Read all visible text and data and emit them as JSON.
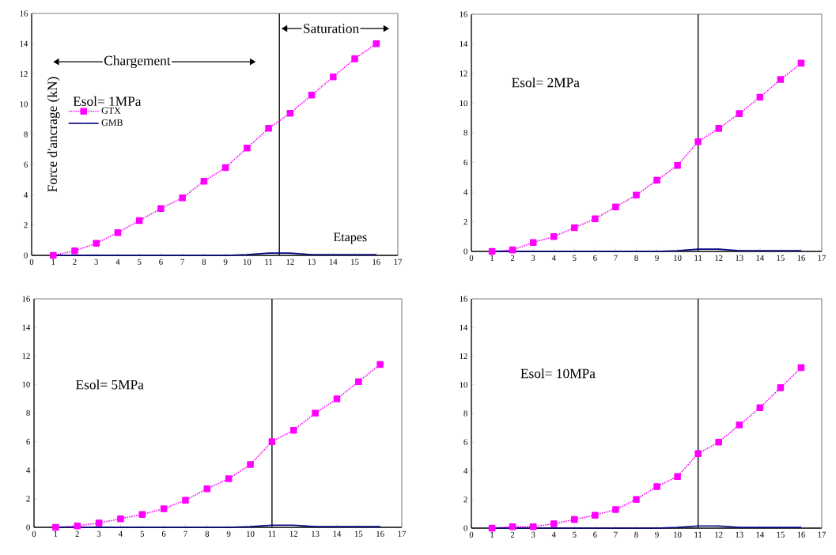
{
  "chart_data": [
    {
      "type": "line",
      "xlabel": "Etapes",
      "ylabel": "Force d'ancrage (kN)",
      "annotations": [
        "Esol= 1MPa",
        "Chargement",
        "Saturation"
      ],
      "x": [
        1,
        2,
        3,
        4,
        5,
        6,
        7,
        8,
        9,
        10,
        11,
        12,
        13,
        14,
        15,
        16
      ],
      "series": [
        {
          "name": "GTX",
          "color": "#ff00ff",
          "marker": "square",
          "line_style": "dotted",
          "values": [
            0,
            0.3,
            0.8,
            1.5,
            2.3,
            3.1,
            3.8,
            4.9,
            5.8,
            7.1,
            8.4,
            9.4,
            10.6,
            11.8,
            13,
            14
          ]
        },
        {
          "name": "GMB",
          "color": "#000080",
          "marker": "none",
          "line_style": "solid",
          "values": [
            0,
            0,
            0,
            0,
            0,
            0,
            0,
            0,
            0,
            0.05,
            0.15,
            0.15,
            0.05,
            0.05,
            0.05,
            0.05
          ]
        }
      ],
      "xlim": [
        0,
        17
      ],
      "xticks": [
        0,
        1,
        2,
        3,
        4,
        5,
        6,
        7,
        8,
        9,
        10,
        11,
        12,
        13,
        14,
        15,
        16,
        17
      ],
      "ylim": [
        0,
        16
      ],
      "yticks": [
        0,
        2,
        4,
        6,
        8,
        10,
        12,
        14,
        16
      ],
      "ref_lines": [
        {
          "axis": "x",
          "value": 11.5,
          "color": "#000000"
        }
      ],
      "legend": "left"
    },
    {
      "type": "line",
      "annotations": [
        "Esol= 2MPa"
      ],
      "x": [
        1,
        2,
        3,
        4,
        5,
        6,
        7,
        8,
        9,
        10,
        11,
        12,
        13,
        14,
        15,
        16
      ],
      "series": [
        {
          "color": "#ff00ff",
          "marker": "square",
          "line_style": "dotted",
          "values": [
            0,
            0.1,
            0.6,
            1.0,
            1.6,
            2.2,
            3.0,
            3.8,
            4.8,
            5.8,
            7.4,
            8.3,
            9.3,
            10.4,
            11.6,
            12.7
          ]
        },
        {
          "color": "#000080",
          "marker": "none",
          "line_style": "solid",
          "values": [
            0,
            0,
            0,
            0,
            0,
            0,
            0,
            0,
            0,
            0.05,
            0.15,
            0.15,
            0.05,
            0.05,
            0.05,
            0.05
          ]
        }
      ],
      "xlim": [
        0,
        17
      ],
      "xticks": [
        0,
        1,
        2,
        3,
        4,
        5,
        6,
        7,
        8,
        9,
        10,
        11,
        12,
        13,
        14,
        15,
        16,
        17
      ],
      "ylim": [
        0,
        16
      ],
      "yticks": [
        0,
        2,
        4,
        6,
        8,
        10,
        12,
        14,
        16
      ],
      "ref_lines": [
        {
          "axis": "x",
          "value": 11,
          "color": "#000000"
        }
      ]
    },
    {
      "type": "line",
      "annotations": [
        "Esol= 5MPa"
      ],
      "x": [
        1,
        2,
        3,
        4,
        5,
        6,
        7,
        8,
        9,
        10,
        11,
        12,
        13,
        14,
        15,
        16
      ],
      "series": [
        {
          "color": "#ff00ff",
          "marker": "square",
          "line_style": "dotted",
          "values": [
            0,
            0.1,
            0.3,
            0.6,
            0.9,
            1.3,
            1.9,
            2.7,
            3.4,
            4.4,
            6.0,
            6.8,
            8.0,
            9.0,
            10.2,
            11.4
          ]
        },
        {
          "color": "#000080",
          "marker": "none",
          "line_style": "solid",
          "values": [
            0,
            0,
            0,
            0,
            0,
            0,
            0,
            0,
            0,
            0.05,
            0.15,
            0.15,
            0.05,
            0.05,
            0.05,
            0.05
          ]
        }
      ],
      "xlim": [
        0,
        17
      ],
      "xticks": [
        0,
        1,
        2,
        3,
        4,
        5,
        6,
        7,
        8,
        9,
        10,
        11,
        12,
        13,
        14,
        15,
        16,
        17
      ],
      "ylim": [
        0,
        16
      ],
      "yticks": [
        0,
        2,
        4,
        6,
        8,
        10,
        12,
        14,
        16
      ],
      "ref_lines": [
        {
          "axis": "x",
          "value": 11,
          "color": "#000000"
        }
      ]
    },
    {
      "type": "line",
      "annotations": [
        "Esol= 10MPa"
      ],
      "x": [
        1,
        2,
        3,
        4,
        5,
        6,
        7,
        8,
        9,
        10,
        11,
        12,
        13,
        14,
        15,
        16
      ],
      "series": [
        {
          "color": "#ff00ff",
          "marker": "square",
          "line_style": "dotted",
          "values": [
            0,
            0.1,
            0.1,
            0.3,
            0.6,
            0.9,
            1.3,
            2.0,
            2.9,
            3.6,
            5.2,
            6.0,
            7.2,
            8.4,
            9.8,
            11.2
          ]
        },
        {
          "color": "#000080",
          "marker": "none",
          "line_style": "solid",
          "values": [
            0,
            0,
            0,
            0,
            0,
            0,
            0,
            0,
            0,
            0.05,
            0.15,
            0.15,
            0.05,
            0.05,
            0.05,
            0.05
          ]
        }
      ],
      "xlim": [
        0,
        17
      ],
      "xticks": [
        0,
        1,
        2,
        3,
        4,
        5,
        6,
        7,
        8,
        9,
        10,
        11,
        12,
        13,
        14,
        15,
        16,
        17
      ],
      "ylim": [
        0,
        16
      ],
      "yticks": [
        0,
        2,
        4,
        6,
        8,
        10,
        12,
        14,
        16
      ],
      "ref_lines": [
        {
          "axis": "x",
          "value": 11,
          "color": "#000000"
        }
      ]
    }
  ]
}
